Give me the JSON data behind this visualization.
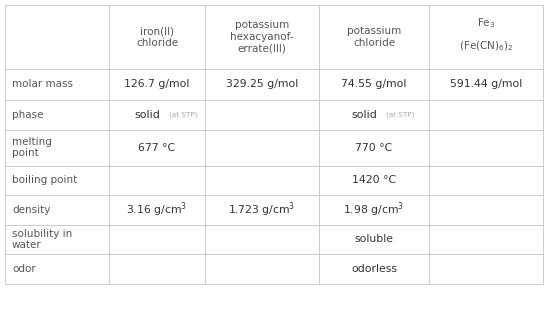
{
  "col_headers": [
    "iron(II)\nchloride",
    "potassium\nhexacyanof-\nerrate(III)",
    "potassium\nchloride",
    "Fe3_header"
  ],
  "row_headers": [
    "molar mass",
    "phase",
    "melting\npoint",
    "boiling point",
    "density",
    "solubility in\nwater",
    "odor"
  ],
  "cells": [
    [
      "126.7 g/mol",
      "329.25 g/mol",
      "74.55 g/mol",
      "591.44 g/mol"
    ],
    [
      "solid_stp",
      "",
      "solid_stp",
      ""
    ],
    [
      "677 °C",
      "",
      "770 °C",
      ""
    ],
    [
      "",
      "",
      "1420 °C",
      ""
    ],
    [
      "3.16 g/cm3",
      "1.723 g/cm3",
      "1.98 g/cm3",
      ""
    ],
    [
      "",
      "",
      "soluble",
      ""
    ],
    [
      "",
      "",
      "odorless",
      ""
    ]
  ],
  "bg_color": "#ffffff",
  "line_color": "#cccccc",
  "header_text_color": "#555555",
  "cell_text_color": "#333333",
  "small_text_color": "#aaaaaa"
}
